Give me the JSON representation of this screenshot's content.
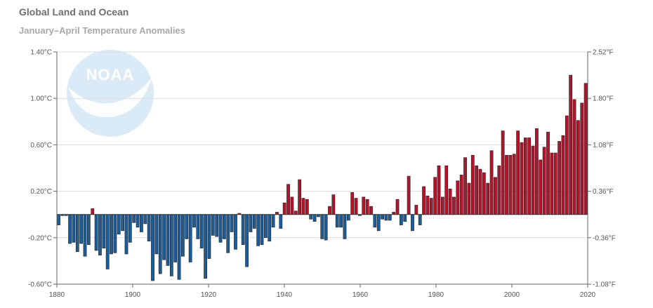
{
  "chart_data": {
    "type": "bar",
    "title": "Global Land and Ocean",
    "subtitle": "January–April Temperature Anomalies",
    "logo_text": "NOAA",
    "x_start": 1880,
    "x_end": 2020,
    "x_ticks": [
      1880,
      1900,
      1920,
      1940,
      1960,
      1980,
      2000,
      2020
    ],
    "ylim_c": [
      -0.6,
      1.4
    ],
    "y_ticks_c": [
      {
        "value": 1.4,
        "label": "1.40°C"
      },
      {
        "value": 1.0,
        "label": "1.00°C"
      },
      {
        "value": 0.6,
        "label": "0.60°C"
      },
      {
        "value": 0.2,
        "label": "0.20°C"
      },
      {
        "value": -0.2,
        "label": "-0.20°C"
      },
      {
        "value": -0.6,
        "label": "-0.60°C"
      }
    ],
    "y_ticks_f": [
      {
        "value": 1.4,
        "label": "2.52°F"
      },
      {
        "value": 1.0,
        "label": "1.80°F"
      },
      {
        "value": 0.6,
        "label": "1.08°F"
      },
      {
        "value": 0.2,
        "label": "0.36°F"
      },
      {
        "value": -0.2,
        "label": "-0.36°F"
      },
      {
        "value": -0.6,
        "label": "-1.08°F"
      }
    ],
    "grid": true,
    "colors": {
      "positive": "#b5122b",
      "negative": "#1c5d99",
      "grid": "#dddddd",
      "logo": "#dbeaf7"
    },
    "years": [
      1880,
      1881,
      1882,
      1883,
      1884,
      1885,
      1886,
      1887,
      1888,
      1889,
      1890,
      1891,
      1892,
      1893,
      1894,
      1895,
      1896,
      1897,
      1898,
      1899,
      1900,
      1901,
      1902,
      1903,
      1904,
      1905,
      1906,
      1907,
      1908,
      1909,
      1910,
      1911,
      1912,
      1913,
      1914,
      1915,
      1916,
      1917,
      1918,
      1919,
      1920,
      1921,
      1922,
      1923,
      1924,
      1925,
      1926,
      1927,
      1928,
      1929,
      1930,
      1931,
      1932,
      1933,
      1934,
      1935,
      1936,
      1937,
      1938,
      1939,
      1940,
      1941,
      1942,
      1943,
      1944,
      1945,
      1946,
      1947,
      1948,
      1949,
      1950,
      1951,
      1952,
      1953,
      1954,
      1955,
      1956,
      1957,
      1958,
      1959,
      1960,
      1961,
      1962,
      1963,
      1964,
      1965,
      1966,
      1967,
      1968,
      1969,
      1970,
      1971,
      1972,
      1973,
      1974,
      1975,
      1976,
      1977,
      1978,
      1979,
      1980,
      1981,
      1982,
      1983,
      1984,
      1985,
      1986,
      1987,
      1988,
      1989,
      1990,
      1991,
      1992,
      1993,
      1994,
      1995,
      1996,
      1997,
      1998,
      1999,
      2000,
      2001,
      2002,
      2003,
      2004,
      2005,
      2006,
      2007,
      2008,
      2009,
      2010,
      2011,
      2012,
      2013,
      2014,
      2015,
      2016,
      2017,
      2018,
      2019,
      2020
    ],
    "values": [
      -0.09,
      -0.01,
      -0.01,
      -0.25,
      -0.24,
      -0.32,
      -0.25,
      -0.36,
      -0.26,
      0.05,
      -0.31,
      -0.35,
      -0.29,
      -0.47,
      -0.34,
      -0.33,
      -0.17,
      -0.14,
      -0.34,
      -0.24,
      -0.07,
      -0.11,
      -0.15,
      -0.08,
      -0.23,
      -0.57,
      -0.34,
      -0.51,
      -0.39,
      -0.44,
      -0.53,
      -0.41,
      -0.56,
      -0.36,
      -0.21,
      -0.41,
      -0.11,
      -0.21,
      -0.29,
      -0.55,
      -0.38,
      -0.18,
      -0.19,
      -0.24,
      -0.21,
      -0.33,
      -0.15,
      -0.3,
      0.01,
      -0.26,
      -0.45,
      -0.15,
      -0.12,
      -0.27,
      -0.26,
      -0.2,
      -0.23,
      -0.11,
      0.02,
      -0.12,
      0.1,
      0.26,
      0.15,
      0.03,
      0.3,
      0.14,
      0.13,
      -0.04,
      -0.06,
      -0.02,
      -0.21,
      -0.22,
      0.07,
      0.17,
      -0.11,
      -0.11,
      -0.21,
      -0.05,
      0.19,
      0.14,
      -0.01,
      0.15,
      0.13,
      0.07,
      -0.11,
      -0.14,
      -0.04,
      -0.05,
      -0.05,
      0.02,
      0.13,
      -0.09,
      -0.06,
      0.33,
      -0.14,
      0.08,
      -0.09,
      0.24,
      0.16,
      0.14,
      0.32,
      0.42,
      0.15,
      0.42,
      0.22,
      0.15,
      0.29,
      0.34,
      0.49,
      0.27,
      0.51,
      0.42,
      0.39,
      0.36,
      0.27,
      0.55,
      0.32,
      0.42,
      0.72,
      0.51,
      0.51,
      0.52,
      0.72,
      0.62,
      0.66,
      0.66,
      0.59,
      0.74,
      0.47,
      0.58,
      0.71,
      0.53,
      0.53,
      0.63,
      0.68,
      0.85,
      1.2,
      0.99,
      0.81,
      0.96,
      1.13
    ]
  }
}
